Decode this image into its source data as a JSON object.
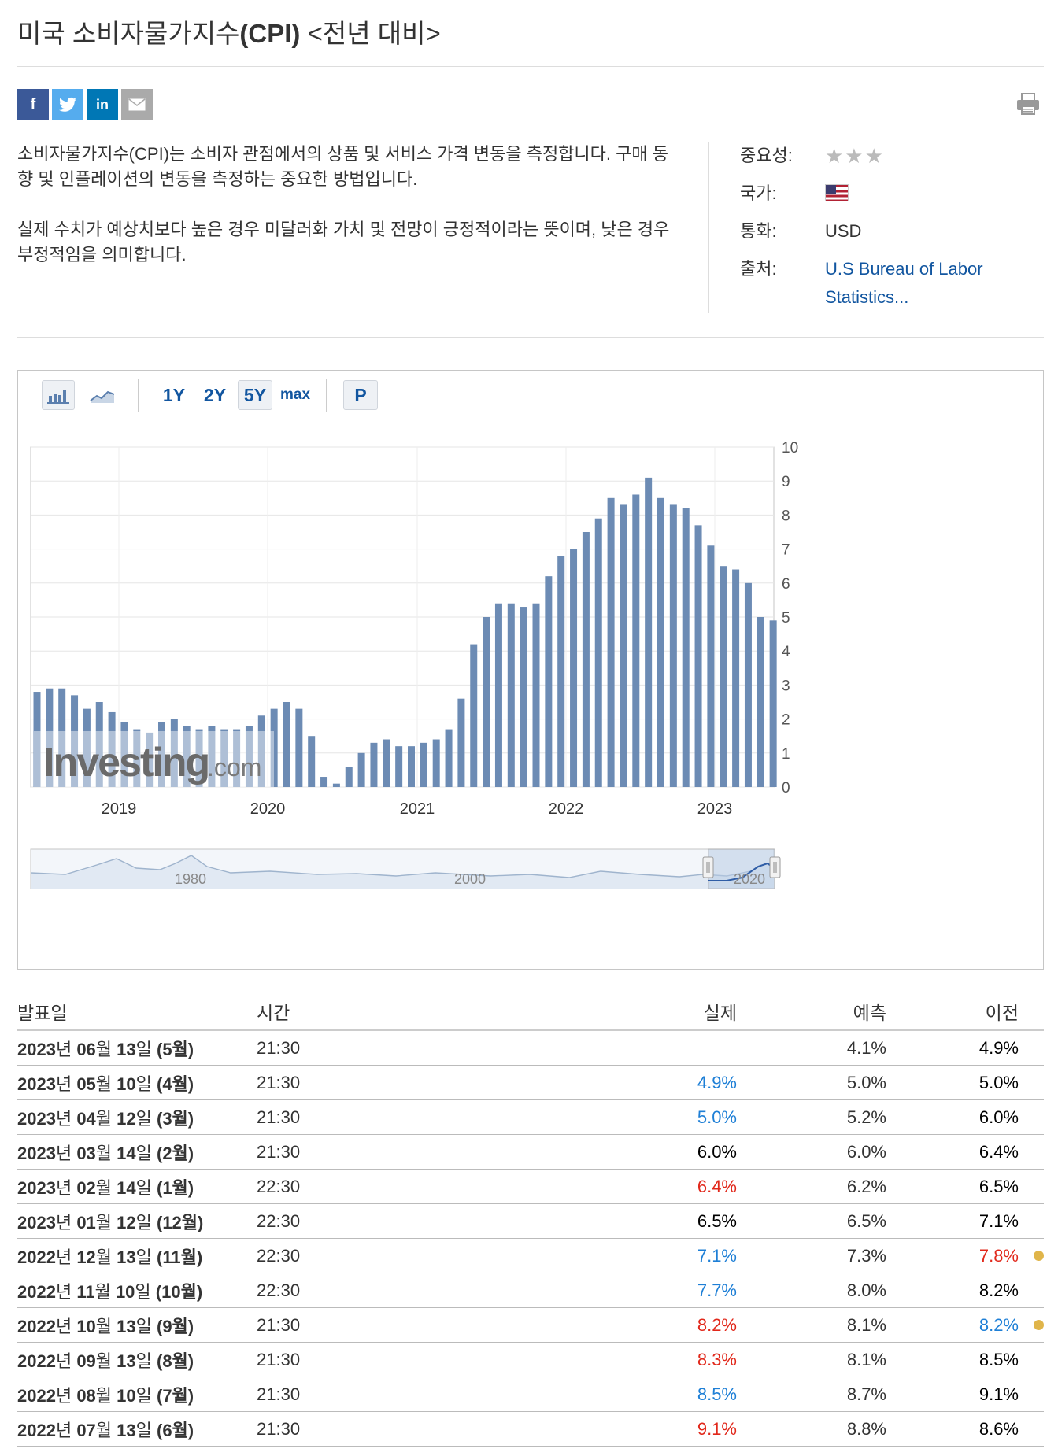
{
  "title": {
    "main": "미국 소비자물가지수",
    "paren": "(CPI)",
    "suffix": " <전년 대비>"
  },
  "share": {
    "fb": "f",
    "tw": "t",
    "in": "in"
  },
  "description": [
    "소비자물가지수(CPI)는 소비자 관점에서의 상품 및 서비스 가격 변동을 측정합니다. 구매 동향 및 인플레이션의 변동을 측정하는 중요한 방법입니다.",
    "실제 수치가 예상치보다 높은 경우 미달러화 가치 및 전망이 긍정적이라는 뜻이며, 낮은 경우 부정적임을 의미합니다."
  ],
  "meta": {
    "importance_label": "중요성:",
    "importance_stars": "★★★",
    "country_label": "국가:",
    "currency_label": "통화:",
    "currency": "USD",
    "source_label": "출처:",
    "source": "U.S Bureau of Labor Statistics..."
  },
  "toolbar": {
    "r1y": "1Y",
    "r2y": "2Y",
    "r5y": "5Y",
    "rmax": "max",
    "p": "P"
  },
  "chart_data": {
    "type": "bar",
    "series": [
      {
        "values": [
          2.8,
          2.9,
          2.9,
          2.7,
          2.3,
          2.5,
          2.2,
          1.9,
          1.7,
          1.6,
          1.9,
          2.0,
          1.8,
          1.7,
          1.8,
          1.7,
          1.7,
          1.8,
          2.1,
          2.3,
          2.5,
          2.3,
          1.5,
          0.3,
          0.1,
          0.6,
          1.0,
          1.3,
          1.4,
          1.2,
          1.2,
          1.3,
          1.4,
          1.7,
          2.6,
          4.2,
          5.0,
          5.4,
          5.4,
          5.3,
          5.4,
          6.2,
          6.8,
          7.0,
          7.5,
          7.9,
          8.5,
          8.3,
          8.6,
          9.1,
          8.5,
          8.3,
          8.2,
          7.7,
          7.1,
          6.5,
          6.4,
          6.0,
          5.0,
          4.9
        ]
      }
    ],
    "ylim": [
      0,
      10
    ],
    "yticks": [
      "0",
      "1",
      "2",
      "3",
      "4",
      "5",
      "6",
      "7",
      "8",
      "9",
      "10"
    ],
    "xticks": [
      "2019",
      "2020",
      "2021",
      "2022",
      "2023"
    ],
    "navigator_labels": [
      "1980",
      "2000",
      "2020"
    ],
    "watermark": "Investing",
    "watermark_suffix": ".com",
    "bar_color": "#6c8bb4",
    "grid": true
  },
  "table": {
    "headers": {
      "date": "발표일",
      "time": "시간",
      "actual": "실제",
      "forecast": "예측",
      "previous": "이전"
    },
    "rows": [
      {
        "y": "2023",
        "m": "06",
        "d": "13",
        "p": "(5월)",
        "time": "21:30",
        "actual": "",
        "act_cls": "neu",
        "forecast": "4.1%",
        "previous": "4.9%",
        "prev_cls": "neu",
        "dot": false
      },
      {
        "y": "2023",
        "m": "05",
        "d": "10",
        "p": "(4월)",
        "time": "21:30",
        "actual": "4.9%",
        "act_cls": "pos",
        "forecast": "5.0%",
        "previous": "5.0%",
        "prev_cls": "neu",
        "dot": false
      },
      {
        "y": "2023",
        "m": "04",
        "d": "12",
        "p": "(3월)",
        "time": "21:30",
        "actual": "5.0%",
        "act_cls": "pos",
        "forecast": "5.2%",
        "previous": "6.0%",
        "prev_cls": "neu",
        "dot": false
      },
      {
        "y": "2023",
        "m": "03",
        "d": "14",
        "p": "(2월)",
        "time": "21:30",
        "actual": "6.0%",
        "act_cls": "neu",
        "forecast": "6.0%",
        "previous": "6.4%",
        "prev_cls": "neu",
        "dot": false
      },
      {
        "y": "2023",
        "m": "02",
        "d": "14",
        "p": "(1월)",
        "time": "22:30",
        "actual": "6.4%",
        "act_cls": "neg",
        "forecast": "6.2%",
        "previous": "6.5%",
        "prev_cls": "neu",
        "dot": false
      },
      {
        "y": "2023",
        "m": "01",
        "d": "12",
        "p": "(12월)",
        "time": "22:30",
        "actual": "6.5%",
        "act_cls": "neu",
        "forecast": "6.5%",
        "previous": "7.1%",
        "prev_cls": "neu",
        "dot": false
      },
      {
        "y": "2022",
        "m": "12",
        "d": "13",
        "p": "(11월)",
        "time": "22:30",
        "actual": "7.1%",
        "act_cls": "pos",
        "forecast": "7.3%",
        "previous": "7.8%",
        "prev_cls": "neg",
        "dot": true
      },
      {
        "y": "2022",
        "m": "11",
        "d": "10",
        "p": "(10월)",
        "time": "22:30",
        "actual": "7.7%",
        "act_cls": "pos",
        "forecast": "8.0%",
        "previous": "8.2%",
        "prev_cls": "neu",
        "dot": false
      },
      {
        "y": "2022",
        "m": "10",
        "d": "13",
        "p": "(9월)",
        "time": "21:30",
        "actual": "8.2%",
        "act_cls": "neg",
        "forecast": "8.1%",
        "previous": "8.2%",
        "prev_cls": "pos",
        "dot": true
      },
      {
        "y": "2022",
        "m": "09",
        "d": "13",
        "p": "(8월)",
        "time": "21:30",
        "actual": "8.3%",
        "act_cls": "neg",
        "forecast": "8.1%",
        "previous": "8.5%",
        "prev_cls": "neu",
        "dot": false
      },
      {
        "y": "2022",
        "m": "08",
        "d": "10",
        "p": "(7월)",
        "time": "21:30",
        "actual": "8.5%",
        "act_cls": "pos",
        "forecast": "8.7%",
        "previous": "9.1%",
        "prev_cls": "neu",
        "dot": false
      },
      {
        "y": "2022",
        "m": "07",
        "d": "13",
        "p": "(6월)",
        "time": "21:30",
        "actual": "9.1%",
        "act_cls": "neg",
        "forecast": "8.8%",
        "previous": "8.6%",
        "prev_cls": "neu",
        "dot": false
      }
    ]
  }
}
